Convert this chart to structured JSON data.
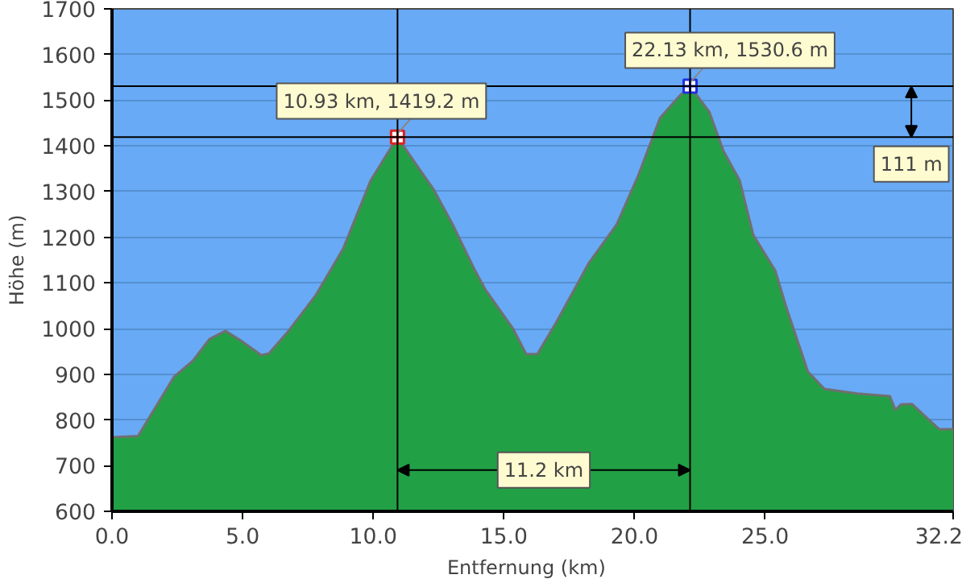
{
  "chart_data": {
    "type": "area",
    "xlabel": "Entfernung   (km)",
    "ylabel": "Höhe (m)",
    "x": [
      0,
      1.0,
      2.37,
      3.1,
      3.73,
      4.35,
      4.98,
      5.71,
      6.0,
      6.76,
      7.8,
      8.85,
      9.9,
      10.93,
      11.78,
      12.3,
      13.04,
      13.9,
      14.3,
      15.34,
      15.86,
      16.28,
      17.0,
      18.27,
      19.32,
      20.15,
      20.98,
      21.72,
      22.13,
      22.87,
      23.4,
      24.03,
      24.55,
      25.39,
      25.8,
      26.64,
      27.27,
      28.53,
      29.78,
      29.99,
      30.2,
      30.62,
      31.66,
      32.2
    ],
    "series": [
      {
        "color": "#22a045",
        "values": [
          762,
          765,
          894,
          930,
          977,
          995,
          972,
          942,
          945,
          995,
          1073,
          1175,
          1324,
          1419.2,
          1348,
          1306,
          1228,
          1127,
          1085,
          1001,
          944,
          944,
          1013,
          1145,
          1228,
          1336,
          1461,
          1509,
          1530.6,
          1474,
          1390,
          1324,
          1205,
          1127,
          1049,
          906,
          868,
          858,
          852,
          822,
          834,
          835,
          780,
          780
        ]
      }
    ],
    "xlim": [
      0,
      32.2
    ],
    "ylim": [
      600,
      1700
    ],
    "xticks": [
      {
        "value": 0,
        "label": "0.0"
      },
      {
        "value": 5,
        "label": "5.0"
      },
      {
        "value": 10,
        "label": "10.0"
      },
      {
        "value": 15,
        "label": "15.0"
      },
      {
        "value": 20,
        "label": "20.0"
      },
      {
        "value": 25,
        "label": "25.0"
      },
      32.2
    ],
    "yticks": [
      600,
      700,
      800,
      900,
      1000,
      1100,
      1200,
      1300,
      1400,
      1500,
      1600,
      1700
    ],
    "grid": "y",
    "ref_lines": [
      {
        "axis": "x",
        "value": 10.93,
        "color": "#000000"
      },
      {
        "axis": "x",
        "value": 22.13,
        "color": "#000000"
      },
      {
        "axis": "y",
        "value": 1419.2,
        "color": "#000000"
      },
      {
        "axis": "y",
        "value": 1530.6,
        "color": "#000000"
      }
    ],
    "annotations": [
      {
        "text": "10.93 km, 1419.2 m",
        "x": 10.93,
        "y": 1419.2
      },
      {
        "text": "22.13 km, 1530.6 m",
        "x": 22.13,
        "y": 1530.6
      },
      "11.2 km",
      {
        "text": "111 m",
        "x": 30.6,
        "y": 1530.6
      }
    ]
  }
}
